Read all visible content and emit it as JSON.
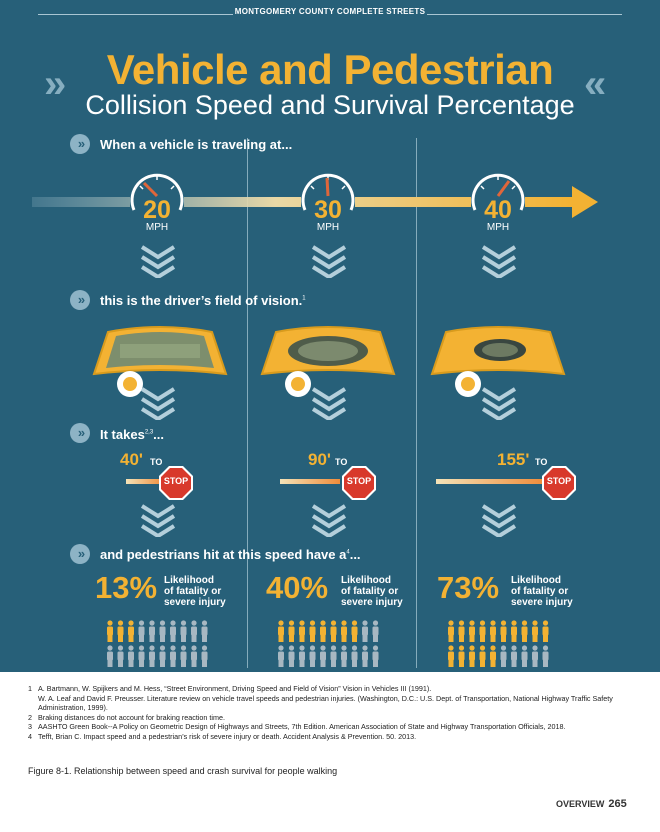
{
  "header": {
    "top_label": "MONTGOMERY COUNTY COMPLETE STREETS",
    "title": "Vehicle and Pedestrian",
    "subtitle": "Collision Speed and Survival Percentage"
  },
  "steps": {
    "s1": "When a vehicle is traveling at...",
    "s2": "this is the driver’s field of vision.",
    "s2_ref": "1",
    "s3": "It takes",
    "s3_ref": "2,3",
    "s3_tail": "...",
    "s4": "and pedestrians hit at this speed have a",
    "s4_ref": "4",
    "s4_tail": "..."
  },
  "speeds": [
    {
      "value": "20",
      "unit": "MPH",
      "fov": 0.85,
      "distance": "40'",
      "to": "TO",
      "sign": "STOP",
      "percent": "13%",
      "likelihood": [
        "Likelihood",
        "of fatality or",
        "severe injury"
      ],
      "fatal_share": 0.13
    },
    {
      "value": "30",
      "unit": "MPH",
      "fov": 0.55,
      "distance": "90'",
      "to": "TO",
      "sign": "STOP",
      "percent": "40%",
      "likelihood": [
        "Likelihood",
        "of fatality or",
        "severe injury"
      ],
      "fatal_share": 0.4
    },
    {
      "value": "40",
      "unit": "MPH",
      "fov": 0.3,
      "distance": "155'",
      "to": "TO",
      "sign": "STOP",
      "percent": "73%",
      "likelihood": [
        "Likelihood",
        "of fatality or",
        "severe injury"
      ],
      "fatal_share": 0.73
    }
  ],
  "footnotes": [
    {
      "num": "1",
      "text": "A. Bartmann, W. Spijkers and M. Hess, “Street Environment, Driving Speed and Field of Vision” Vision in Vehicles III (1991)."
    },
    {
      "num": "",
      "text": "W. A. Leaf and David F. Preusser. Literature review on vehicle travel speeds and pedestrian injuries. (Washington, D.C.: U.S. Dept. of Transportation, National Highway Traffic Safety Administration, 1999)."
    },
    {
      "num": "2",
      "text": "Braking distances do not account for braking reaction time."
    },
    {
      "num": "3",
      "text": "AASHTO Green Book--A Policy on Geometric Design of Highways and Streets, 7th Edition. American Association of State and Highway Transportation Officials, 2018."
    },
    {
      "num": "4",
      "text": "Tefft, Brian C. Impact speed and a pedestrian’s risk of severe injury or death. Accident Analysis & Prevention. 50. 2013."
    }
  ],
  "caption": "Figure 8-1. Relationship between speed and crash survival for people walking",
  "footer": {
    "section": "OVERVIEW",
    "page": "265"
  },
  "colors": {
    "background": "#276079",
    "accent": "#f3b233",
    "stop_red": "#d8392b",
    "person_gray": "#a8b8c2"
  },
  "icons": [
    "speedometer-icon",
    "stop-sign-icon",
    "windshield-icon",
    "steering-wheel-icon",
    "chevron-down-icon",
    "person-icon",
    "arrow-right-icon"
  ]
}
